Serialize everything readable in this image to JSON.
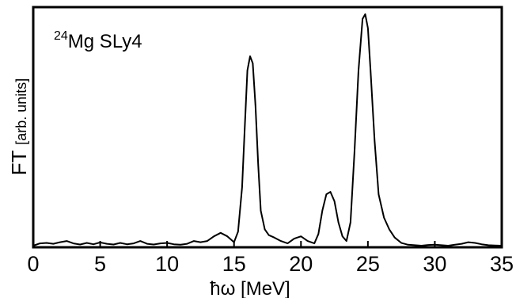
{
  "chart_data": {
    "type": "line",
    "annotation": {
      "sup": "24",
      "text": "Mg SLy4"
    },
    "xlabel_parts": {
      "hbar": "ħ",
      "rest": "ω [MeV]"
    },
    "ylabel_parts": {
      "main": "FT ",
      "unit": "[arb. units]"
    },
    "xlim": [
      0,
      35
    ],
    "ylim": [
      0,
      1
    ],
    "x_ticks": [
      0,
      5,
      10,
      15,
      20,
      25,
      30,
      35
    ],
    "y_ticks_shown": false,
    "grid": false,
    "legend": "none",
    "line_color": "#000000",
    "series": [
      {
        "x": [
          0,
          0.5,
          1.0,
          1.5,
          2.0,
          2.5,
          3.0,
          3.5,
          4.0,
          4.5,
          5.0,
          5.5,
          6.0,
          6.5,
          7.0,
          7.5,
          8.0,
          8.5,
          9.0,
          9.5,
          10.0,
          10.5,
          11.0,
          11.5,
          12.0,
          12.5,
          13.0,
          13.5,
          14.0,
          14.5,
          15.0,
          15.3,
          15.6,
          15.8,
          16.0,
          16.2,
          16.4,
          16.6,
          16.8,
          17.0,
          17.3,
          17.6,
          18.0,
          18.5,
          19.0,
          19.5,
          20.0,
          20.5,
          21.0,
          21.3,
          21.6,
          21.9,
          22.2,
          22.5,
          22.8,
          23.1,
          23.4,
          23.7,
          24.0,
          24.3,
          24.6,
          24.8,
          25.0,
          25.2,
          25.5,
          25.8,
          26.2,
          26.6,
          27.0,
          27.5,
          28.0,
          28.5,
          29.0,
          29.5,
          30.0,
          30.5,
          31.0,
          31.5,
          32.0,
          32.5,
          33.0,
          33.5,
          34.0,
          34.5,
          35.0
        ],
        "y": [
          0.0,
          0.01,
          0.012,
          0.008,
          0.015,
          0.02,
          0.01,
          0.005,
          0.012,
          0.006,
          0.014,
          0.008,
          0.005,
          0.012,
          0.006,
          0.01,
          0.02,
          0.008,
          0.005,
          0.01,
          0.012,
          0.006,
          0.004,
          0.008,
          0.02,
          0.015,
          0.02,
          0.04,
          0.055,
          0.04,
          0.015,
          0.06,
          0.25,
          0.5,
          0.75,
          0.81,
          0.78,
          0.6,
          0.35,
          0.15,
          0.07,
          0.045,
          0.035,
          0.02,
          0.01,
          0.03,
          0.04,
          0.02,
          0.01,
          0.05,
          0.15,
          0.22,
          0.23,
          0.19,
          0.1,
          0.04,
          0.02,
          0.1,
          0.4,
          0.75,
          0.97,
          0.99,
          0.93,
          0.75,
          0.45,
          0.22,
          0.12,
          0.07,
          0.035,
          0.012,
          0.004,
          0.002,
          0.0,
          0.003,
          0.004,
          0.002,
          0.0,
          0.004,
          0.008,
          0.015,
          0.012,
          0.006,
          0.002,
          0.001,
          0.0
        ]
      }
    ]
  }
}
